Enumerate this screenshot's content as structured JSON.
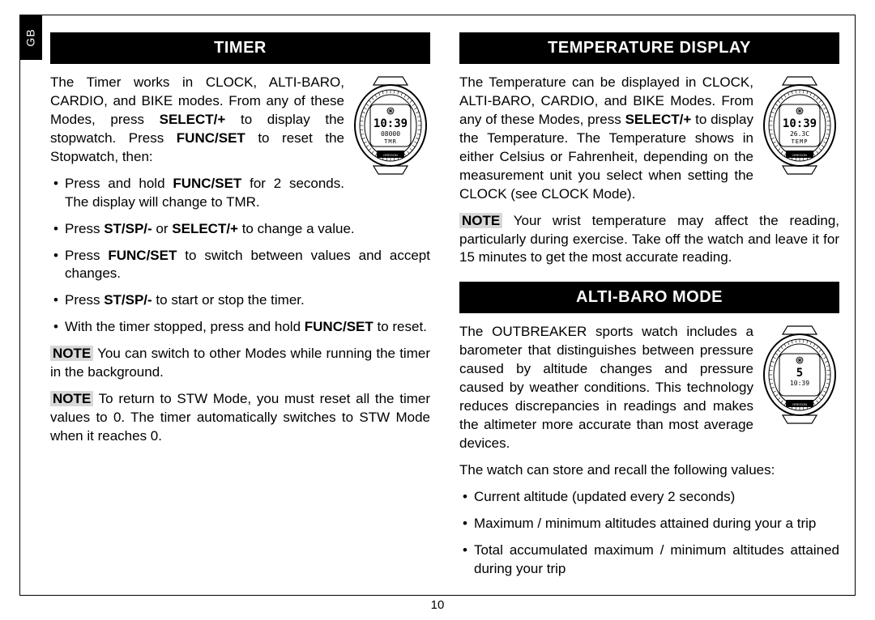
{
  "side_tab": "GB",
  "page_number": "10",
  "left": {
    "header": "TIMER",
    "intro_html": "The Timer works in CLOCK, ALTI-BARO, CARDIO, and BIKE modes. From any of these Modes, press <b>SELECT/+</b> to display the stopwatch.  Press <b>FUNC/SET</b> to reset the Stopwatch, then:",
    "bullets_html": [
      "Press and hold <b>FUNC/SET</b> for 2 seconds. The display will change to TMR.",
      "Press <b>ST/SP/-</b> or <b>SELECT/+</b> to change a value.",
      "Press <b>FUNC/SET</b> to switch between values and accept changes.",
      "Press <b>ST/SP/-</b> to start or stop the timer.",
      "With the timer stopped, press and hold <b>FUNC/SET</b> to reset."
    ],
    "note1_html": "<span class=\"note-label\"><b>NOTE</b></span> You can switch to other Modes while running the timer in the background.",
    "note2_html": "<span class=\"note-label\"><b>NOTE</b></span> To return to STW Mode, you must reset all the timer values to 0. The timer automatically switches to STW Mode when it reaches 0.",
    "watch": {
      "line1": "10:39",
      "line2": "08000",
      "line3": "TMR"
    }
  },
  "right": {
    "sec1": {
      "header": "TEMPERATURE DISPLAY",
      "intro_html": "The Temperature can be displayed in CLOCK, ALTI-BARO, CARDIO, and BIKE Modes. From any of these Modes, press <b>SELECT/+</b> to display the Temperature. The Temperature shows in either Celsius or Fahrenheit, depending on the measurement unit you select when setting the CLOCK (see CLOCK Mode).",
      "note_html": "<span class=\"note-label\"><b>NOTE</b></span>  Your wrist temperature may affect the reading, particularly during exercise. Take off the watch and leave it for 15 minutes to get the most accurate reading.",
      "watch": {
        "line1": "10:39",
        "line2": "26.3C",
        "line3": "TEMP"
      }
    },
    "sec2": {
      "header": "ALTI-BARO MODE",
      "intro_html": "The OUTBREAKER sports watch includes a barometer that distinguishes between pressure caused by altitude changes and pressure caused by weather conditions. This technology reduces discrepancies in readings and makes the altimeter more accurate than most average devices.",
      "sub": "The watch can store and recall the following values:",
      "bullets": [
        "Current altitude (updated every 2 seconds)",
        "Maximum / minimum altitudes attained during your a trip",
        "Total accumulated maximum / minimum altitudes attained during your trip"
      ],
      "watch": {
        "line1": "5",
        "line2": "10:39",
        "line3": ""
      }
    }
  }
}
